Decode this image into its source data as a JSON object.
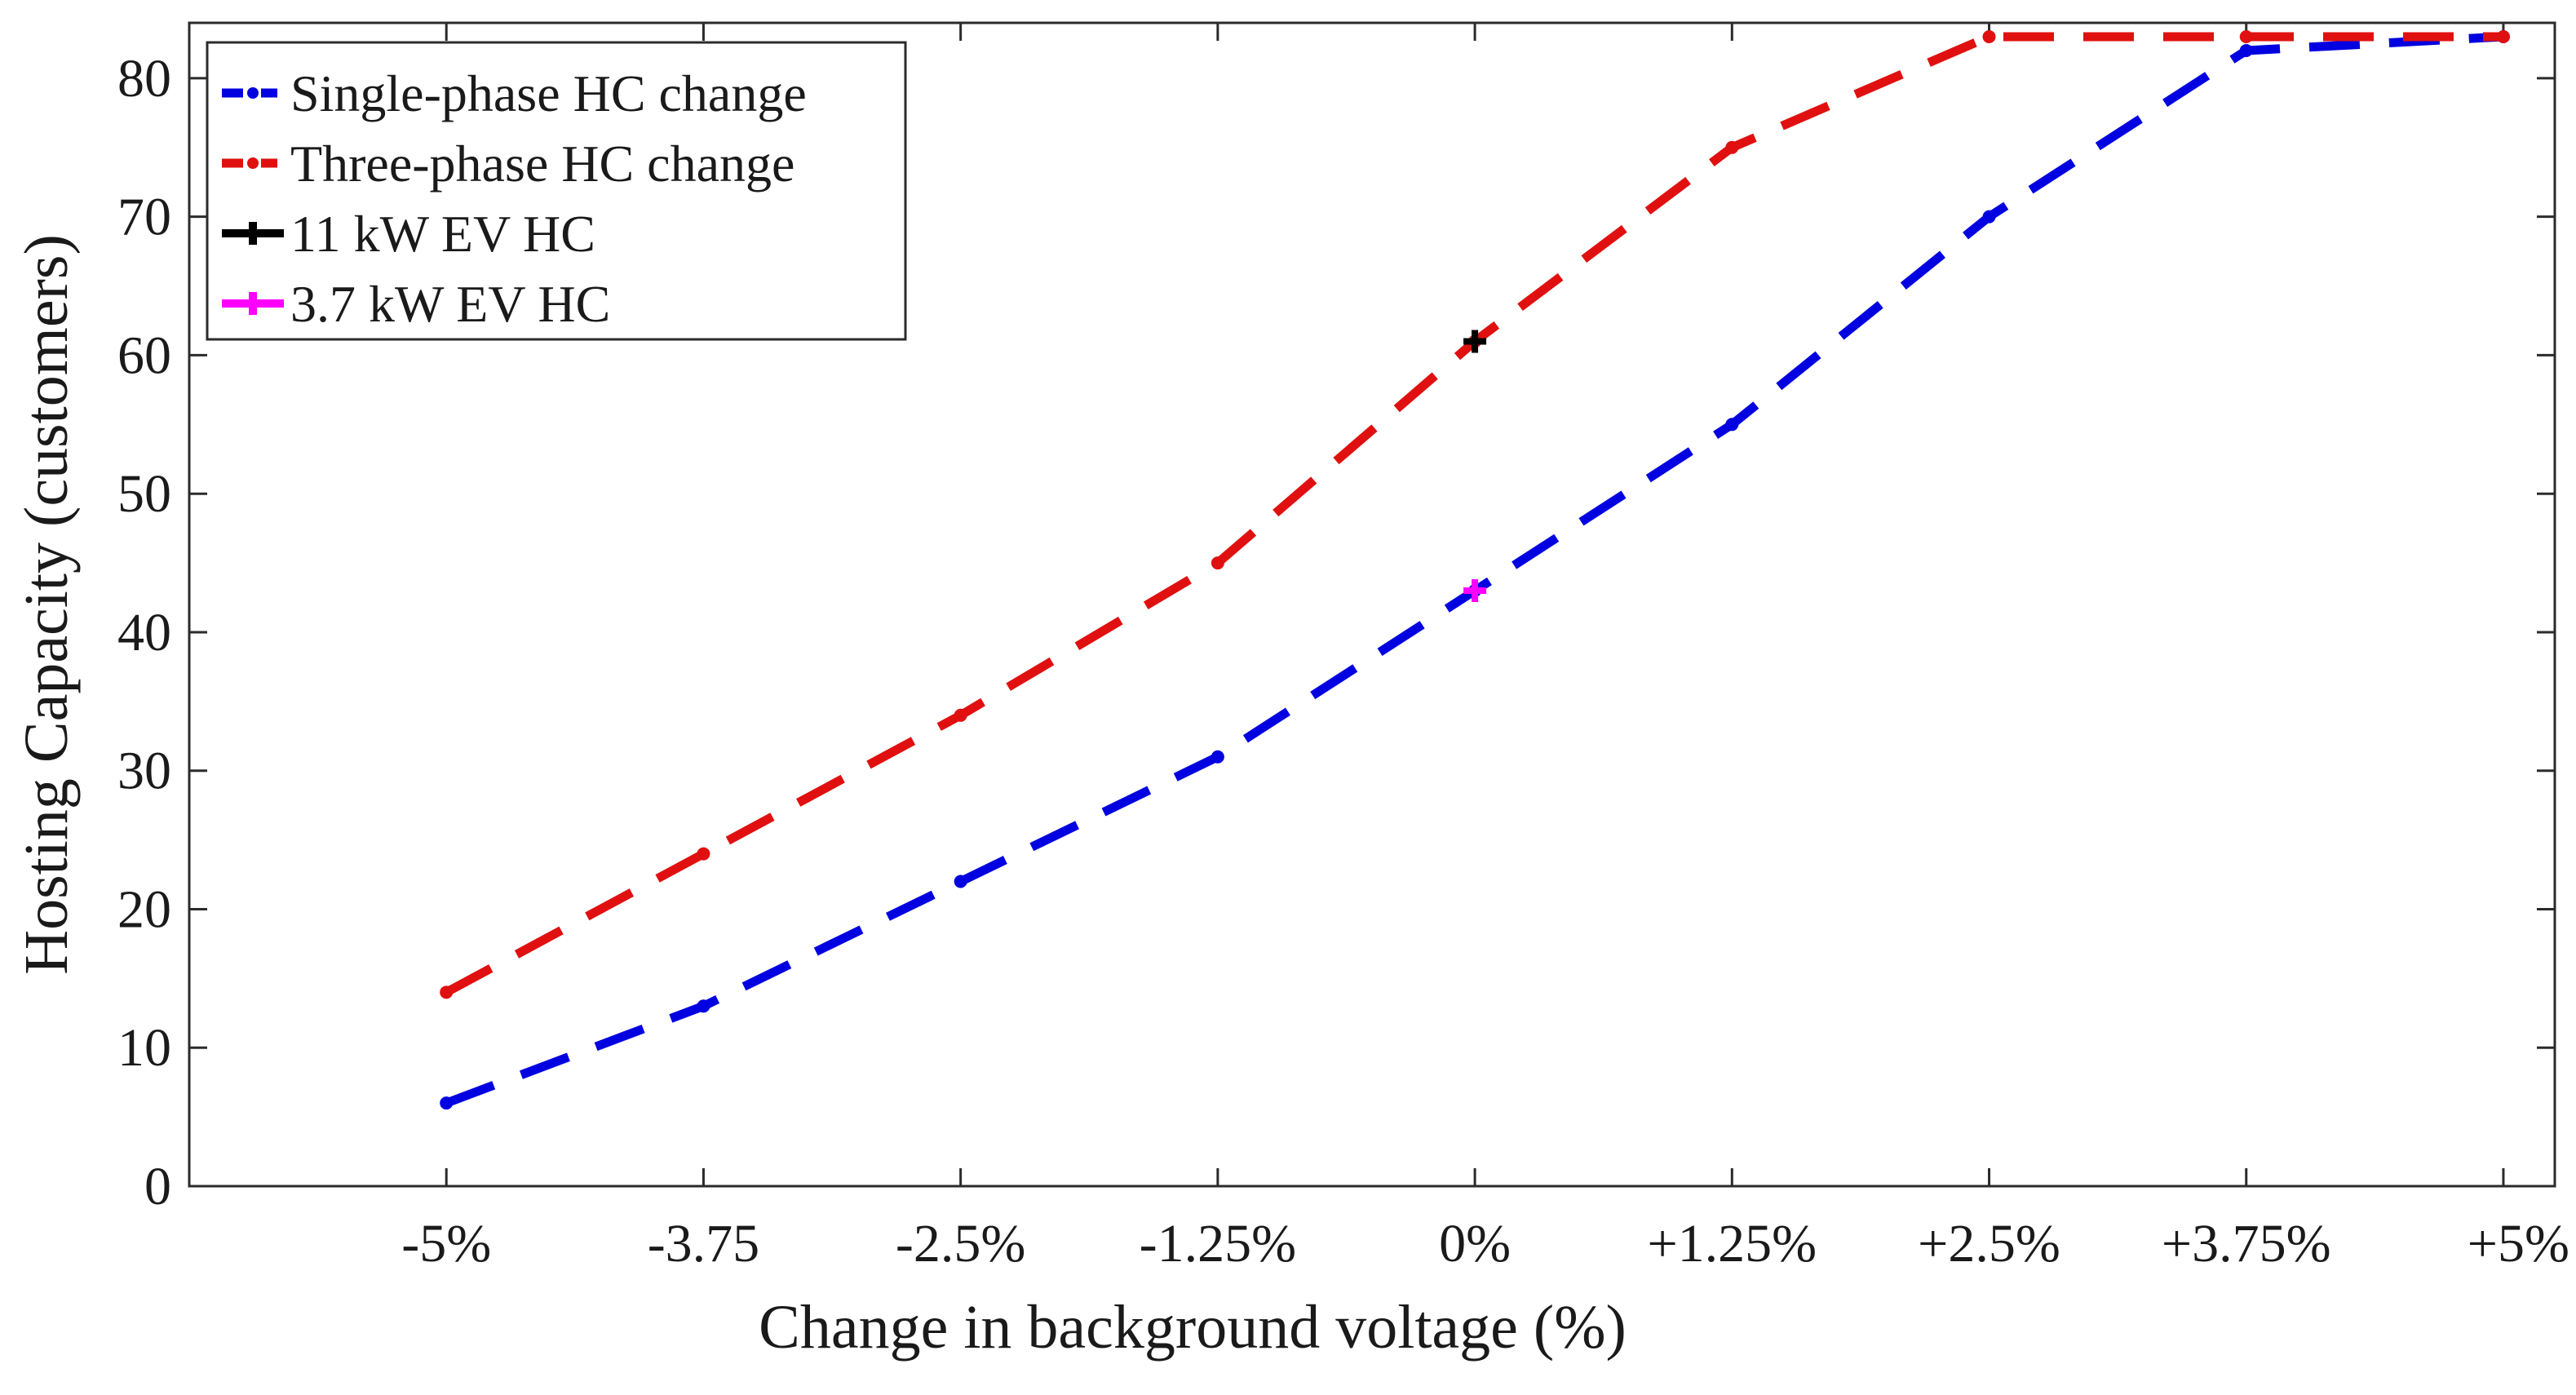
{
  "chart_data": {
    "type": "line",
    "title": "",
    "xlabel": "Change in background voltage (%)",
    "ylabel": "Hosting Capacity (customers)",
    "categories": [
      "-5%",
      "-3.75",
      "-2.5%",
      "-1.25%",
      "0%",
      "+1.25%",
      "+2.5%",
      "+3.75%",
      "+5%"
    ],
    "x": [
      -5,
      -3.75,
      -2.5,
      -1.25,
      0,
      1.25,
      2.5,
      3.75,
      5
    ],
    "xlim": [
      -6.25,
      5.25
    ],
    "ylim": [
      0,
      84
    ],
    "yticks": [
      0,
      10,
      20,
      30,
      40,
      50,
      60,
      70,
      80
    ],
    "grid": false,
    "legend_position": "top-left",
    "series": [
      {
        "name": "Single-phase HC change",
        "style": "dashed",
        "color": "#0000e0",
        "values": [
          6,
          13,
          22,
          31,
          43,
          55,
          70,
          82,
          83
        ]
      },
      {
        "name": "Three-phase HC change",
        "style": "dashed",
        "color": "#e01010",
        "values": [
          14,
          24,
          34,
          45,
          61,
          75,
          83,
          83,
          83
        ]
      }
    ],
    "points": [
      {
        "name": "11 kW EV HC",
        "marker": "plus",
        "color": "#000000",
        "x": 0,
        "y": 61
      },
      {
        "name": "3.7 kW EV HC",
        "marker": "plus",
        "color": "#ff00ff",
        "x": 0,
        "y": 43
      }
    ]
  }
}
